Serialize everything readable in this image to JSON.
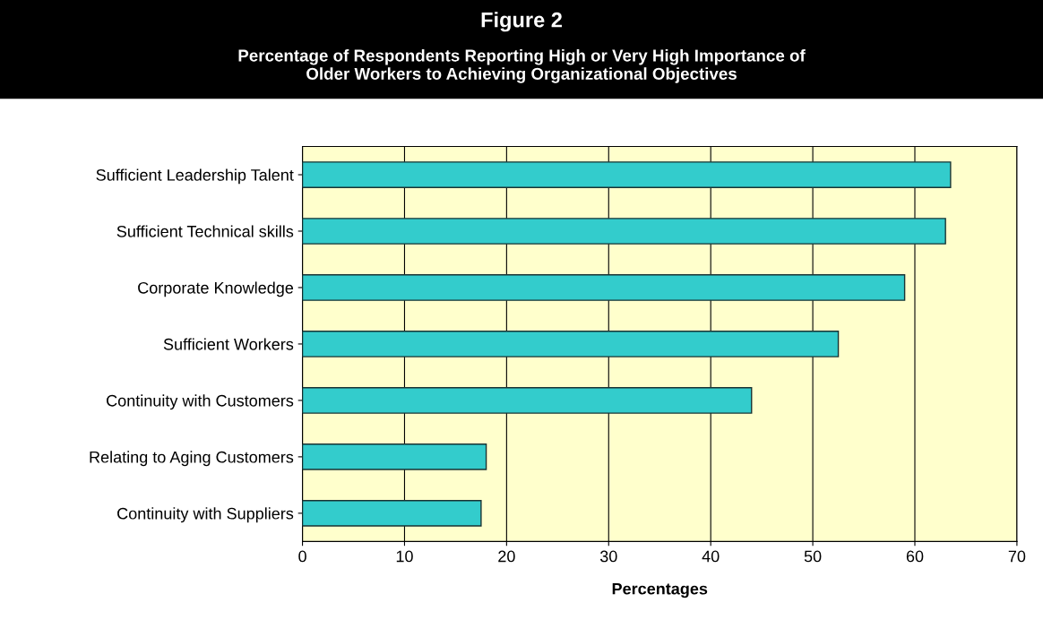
{
  "chart_data": {
    "type": "bar",
    "orientation": "horizontal",
    "title": "Figure 2",
    "subtitle": "Percentage of Respondents Reporting High or Very High Importance of\nOlder Workers to Achieving Organizational Objectives",
    "categories": [
      "Sufficient Leadership Talent",
      "Sufficient Technical skills",
      "Corporate Knowledge",
      "Sufficient Workers",
      "Continuity with Customers",
      "Relating to Aging Customers",
      "Continuity with Suppliers"
    ],
    "values": [
      63.5,
      63,
      59,
      52.5,
      44,
      18,
      17.5
    ],
    "color": "#33cccc",
    "xlabel": "Percentages",
    "xlim": [
      0,
      70
    ],
    "xticks": [
      0,
      10,
      20,
      30,
      40,
      50,
      60,
      70
    ],
    "grid": "x",
    "legend": false
  }
}
